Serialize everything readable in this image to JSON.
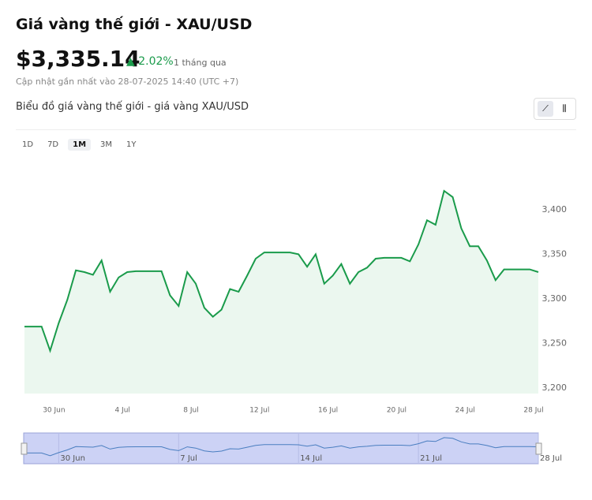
{
  "header": {
    "title": "Giá vàng thế giới - XAU/USD",
    "price": "$3,335.14",
    "change": "2.02%",
    "period": "1 tháng qua",
    "updated": "Cập nhật gần nhất vào 28-07-2025 14:40 (UTC +7)",
    "chart_heading": "Biểu đồ giá vàng thế giới - giá vàng XAU/USD",
    "ranges": [
      "1D",
      "7D",
      "1M",
      "3M",
      "1Y"
    ],
    "active_range": "1M"
  },
  "chart_data": {
    "type": "line",
    "categories": [
      null,
      null,
      null,
      null,
      "30 Jun",
      null,
      null,
      null,
      null,
      null,
      null,
      null,
      "4 Jul",
      null,
      null,
      null,
      null,
      null,
      null,
      null,
      "8 Jul",
      null,
      null,
      null,
      null,
      null,
      null,
      null,
      "12 Jul",
      null,
      null,
      null,
      null,
      null,
      null,
      null,
      "16 Jul",
      null,
      null,
      null,
      null,
      null,
      null,
      null,
      "20 Jul",
      null,
      null,
      null,
      null,
      null,
      null,
      null,
      "24 Jul",
      null,
      null,
      null,
      null,
      null,
      null,
      null,
      "28 Jul"
    ],
    "navigator_categories": [
      null,
      null,
      null,
      null,
      "30 Jun",
      null,
      null,
      null,
      null,
      null,
      null,
      null,
      null,
      null,
      null,
      null,
      null,
      null,
      "7 Jul",
      null,
      null,
      null,
      null,
      null,
      null,
      null,
      null,
      null,
      null,
      null,
      null,
      null,
      "14 Jul",
      null,
      null,
      null,
      null,
      null,
      null,
      null,
      null,
      null,
      null,
      null,
      null,
      null,
      "21 Jul",
      null,
      null,
      null,
      null,
      null,
      null,
      null,
      null,
      null,
      null,
      null,
      null,
      null,
      "28 Jul"
    ],
    "series": [
      {
        "name": "XAU/USD",
        "color": "#1a9b4b",
        "values": [
          3269,
          3269,
          3269,
          3242,
          3273,
          3299,
          3332,
          3330,
          3327,
          3343,
          3308,
          3324,
          3330,
          3331,
          3331,
          3331,
          3331,
          3304,
          3292,
          3330,
          3317,
          3290,
          3280,
          3288,
          3311,
          3308,
          3326,
          3345,
          3352,
          3352,
          3352,
          3352,
          3350,
          3336,
          3350,
          3317,
          3326,
          3339,
          3317,
          3330,
          3335,
          3345,
          3346,
          3346,
          3346,
          3342,
          3361,
          3388,
          3383,
          3421,
          3414,
          3379,
          3359,
          3359,
          3343,
          3321,
          3333,
          3333,
          3333,
          3333,
          3330
        ]
      }
    ],
    "ylim": [
      3194,
      3436
    ],
    "yticks": [
      {
        "value": 3200,
        "label": "3,200"
      },
      {
        "value": 3250,
        "label": "3,250"
      },
      {
        "value": 3300,
        "label": "3,300"
      },
      {
        "value": 3350,
        "label": "3,350"
      },
      {
        "value": 3400,
        "label": "3,400"
      }
    ]
  }
}
